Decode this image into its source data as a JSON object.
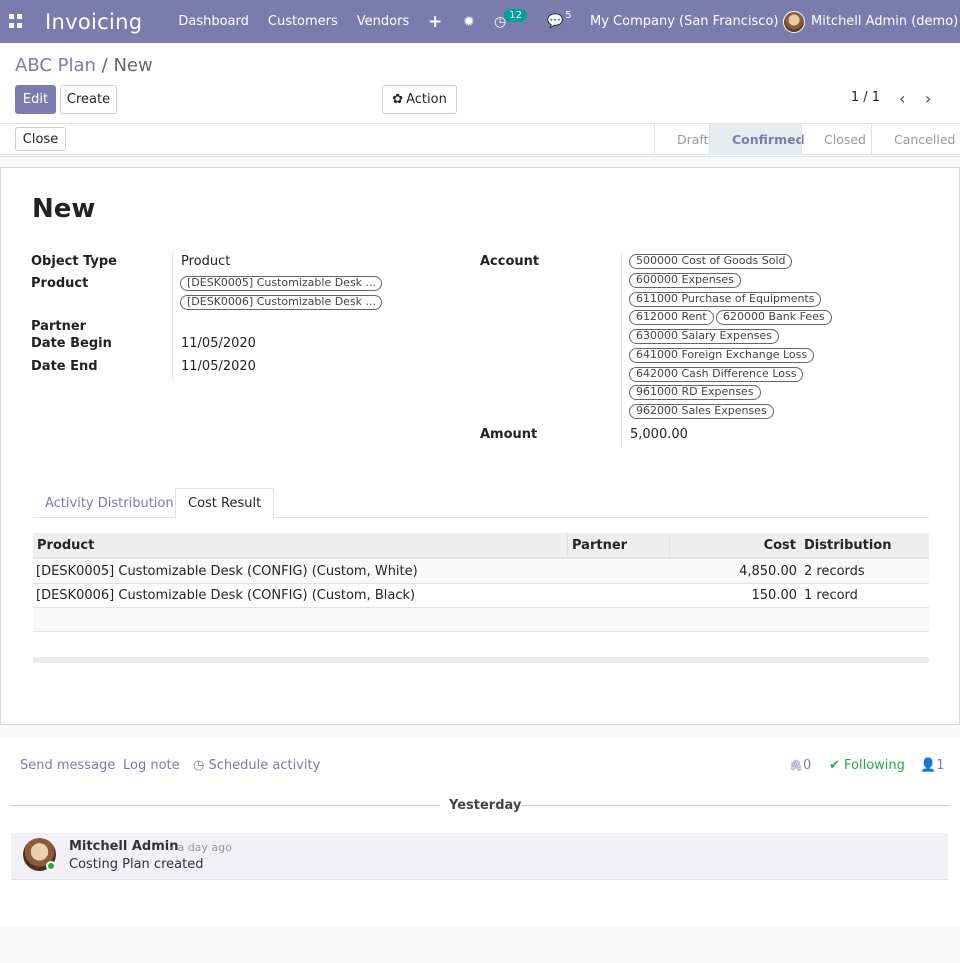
{
  "navbar": {
    "app_name": "Invoicing",
    "menu": [
      "Dashboard",
      "Customers",
      "Vendors"
    ],
    "activity_count": "12",
    "message_count": "5",
    "company": "My Company (San Francisco)",
    "user": "Mitchell Admin (demo)",
    "accent": "#7c7bad"
  },
  "breadcrumb": {
    "parent": "ABC Plan",
    "current": "New"
  },
  "buttons": {
    "edit": "Edit",
    "create": "Create",
    "action": "Action",
    "close": "Close"
  },
  "pager": "1 / 1",
  "stages": [
    "Draft",
    "Confirmed",
    "Closed",
    "Cancelled"
  ],
  "active_stage": "Confirmed",
  "record": {
    "name": "New",
    "labels": {
      "object_type": "Object Type",
      "product": "Product",
      "partner": "Partner",
      "date_begin": "Date Begin",
      "date_end": "Date End",
      "account": "Account",
      "amount": "Amount"
    },
    "object_type": "Product",
    "products": [
      "[DESK0005] Customizable Desk ...",
      "[DESK0006] Customizable Desk ..."
    ],
    "partner": "",
    "date_begin": "11/05/2020",
    "date_end": "11/05/2020",
    "accounts": [
      "500000 Cost of Goods Sold",
      "600000 Expenses",
      "611000 Purchase of Equipments",
      "612000 Rent",
      "620000 Bank Fees",
      "630000 Salary Expenses",
      "641000 Foreign Exchange Loss",
      "642000 Cash Difference Loss",
      "961000 RD Expenses",
      "962000 Sales Expenses"
    ],
    "amount": "5,000.00"
  },
  "tabs": [
    "Activity Distribution",
    "Cost Result"
  ],
  "table": {
    "headers": [
      "Product",
      "Partner",
      "Cost",
      "Distribution"
    ],
    "rows": [
      {
        "product": "[DESK0005] Customizable Desk (CONFIG) (Custom, White)",
        "partner": "",
        "cost": "4,850.00",
        "distribution": "2 records"
      },
      {
        "product": "[DESK0006] Customizable Desk (CONFIG) (Custom, Black)",
        "partner": "",
        "cost": "150.00",
        "distribution": "1 record"
      }
    ]
  },
  "chatter": {
    "send_message": "Send message",
    "log_note": "Log note",
    "schedule_activity": "Schedule activity",
    "attachments": "0",
    "following": "Following",
    "followers": "1",
    "date_separator": "Yesterday",
    "messages": [
      {
        "author": "Mitchell Admin",
        "time": "- a day ago",
        "body": "Costing Plan created"
      }
    ]
  }
}
